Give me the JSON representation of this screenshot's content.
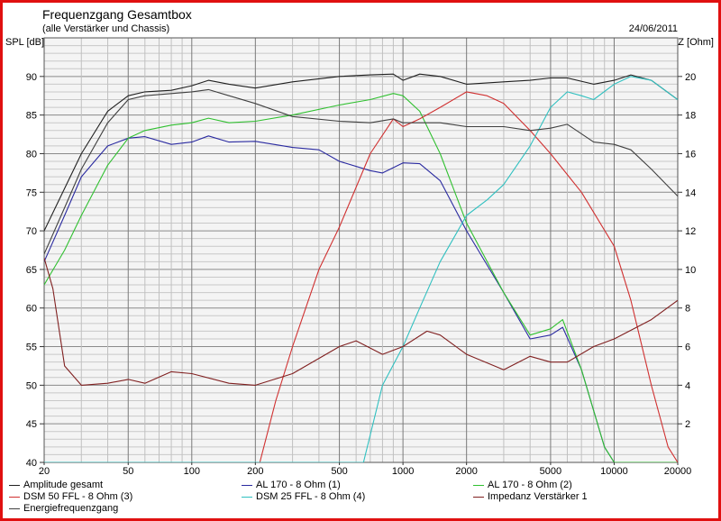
{
  "chart_data": {
    "type": "line",
    "title": "Frequenzgang Gesamtbox",
    "subtitle": "(alle Verstärker und Chassis)",
    "date": "24/06/2011",
    "xlabel": "",
    "ylabel": "SPL [dB]",
    "y2label": "Z [Ohm]",
    "xscale": "log",
    "xlim": [
      20,
      20000
    ],
    "ylim": [
      40,
      95
    ],
    "y2lim": [
      0,
      22
    ],
    "grid": true,
    "legend_position": "bottom",
    "x_ticks": [
      "20",
      "50",
      "100",
      "200",
      "500",
      "1000",
      "2000",
      "5000",
      "10000",
      "20000"
    ],
    "x_tick_values": [
      20,
      50,
      100,
      200,
      500,
      1000,
      2000,
      5000,
      10000,
      20000
    ],
    "y_ticks": [
      "40",
      "45",
      "50",
      "55",
      "60",
      "65",
      "70",
      "75",
      "80",
      "85",
      "90"
    ],
    "y_tick_values": [
      40,
      45,
      50,
      55,
      60,
      65,
      70,
      75,
      80,
      85,
      90
    ],
    "y2_ticks": [
      "2",
      "4",
      "6",
      "8",
      "10",
      "12",
      "14",
      "16",
      "18",
      "20"
    ],
    "y2_tick_values": [
      2,
      4,
      6,
      8,
      10,
      12,
      14,
      16,
      18,
      20
    ],
    "series": [
      {
        "name": "Amplitude gesamt",
        "color": "#202020",
        "axis": "left",
        "x": [
          20,
          25,
          30,
          40,
          50,
          60,
          80,
          100,
          120,
          150,
          200,
          300,
          500,
          700,
          900,
          1000,
          1200,
          1500,
          2000,
          3000,
          4000,
          5000,
          6000,
          8000,
          10000,
          12000,
          15000,
          20000
        ],
        "y": [
          70,
          75.5,
          80,
          85.5,
          87.5,
          88,
          88.2,
          88.8,
          89.5,
          89,
          88.5,
          89.3,
          90,
          90.2,
          90.3,
          89.5,
          90.3,
          90,
          89,
          89.3,
          89.5,
          89.8,
          89.8,
          89,
          89.5,
          90.2,
          89.5,
          87
        ]
      },
      {
        "name": "AL 170 - 8 Ohm (1)",
        "color": "#2a2aa0",
        "axis": "left",
        "x": [
          20,
          25,
          30,
          40,
          50,
          60,
          80,
          100,
          120,
          150,
          200,
          300,
          400,
          500,
          700,
          800,
          1000,
          1200,
          1500,
          2000,
          3000,
          4000,
          5000,
          5700,
          7000,
          9000,
          10000,
          20000
        ],
        "y": [
          66,
          72,
          77,
          81,
          82,
          82.2,
          81.2,
          81.5,
          82.3,
          81.5,
          81.6,
          80.8,
          80.5,
          79,
          77.8,
          77.5,
          78.8,
          78.7,
          76.5,
          70,
          62,
          56,
          56.5,
          57.5,
          52,
          42,
          40,
          40
        ]
      },
      {
        "name": "AL 170 - 8 Ohm (2)",
        "color": "#30c030",
        "axis": "left",
        "x": [
          20,
          25,
          30,
          40,
          50,
          60,
          80,
          100,
          120,
          150,
          200,
          300,
          500,
          700,
          900,
          1000,
          1200,
          1500,
          2000,
          3000,
          4000,
          5000,
          5700,
          7000,
          9000,
          10000,
          20000
        ],
        "y": [
          63,
          67.5,
          72,
          78.5,
          82,
          83,
          83.7,
          84,
          84.6,
          84,
          84.2,
          85,
          86.3,
          87,
          87.8,
          87.5,
          85.5,
          80,
          71,
          62,
          56.5,
          57.3,
          58.5,
          52,
          42,
          40,
          40
        ]
      },
      {
        "name": "DSM 50 FFL - 8 Ohm (3)",
        "color": "#d03030",
        "axis": "left",
        "x": [
          20,
          210,
          250,
          300,
          400,
          500,
          700,
          900,
          1000,
          1200,
          1500,
          2000,
          2500,
          3000,
          4000,
          5000,
          7000,
          10000,
          12000,
          15000,
          18000,
          20000
        ],
        "y": [
          40,
          40,
          48,
          55,
          65,
          70.5,
          80,
          84.5,
          83.5,
          84.5,
          86,
          88,
          87.5,
          86.5,
          83,
          80,
          75,
          68,
          61,
          50,
          42,
          40
        ]
      },
      {
        "name": "DSM 25 FFL - 8 Ohm (4)",
        "color": "#30c0c0",
        "axis": "left",
        "x": [
          20,
          650,
          800,
          1000,
          1200,
          1500,
          2000,
          2500,
          3000,
          4000,
          5000,
          6000,
          7000,
          8000,
          10000,
          12000,
          15000,
          20000
        ],
        "y": [
          40,
          40,
          50,
          55,
          60,
          66,
          72,
          74,
          76,
          81,
          86,
          88,
          87.5,
          87,
          89,
          90,
          89.5,
          87
        ]
      },
      {
        "name": "Impedanz Verstärker 1",
        "color": "#802020",
        "axis": "right",
        "x": [
          20,
          22,
          25,
          30,
          40,
          50,
          60,
          80,
          100,
          150,
          200,
          300,
          500,
          600,
          800,
          1000,
          1300,
          1500,
          2000,
          3000,
          4000,
          5000,
          6000,
          8000,
          10000,
          15000,
          20000
        ],
        "y": [
          10.6,
          9,
          5,
          4,
          4.1,
          4.3,
          4.1,
          4.7,
          4.6,
          4.1,
          4,
          4.6,
          6,
          6.3,
          5.6,
          6,
          6.8,
          6.6,
          5.6,
          4.8,
          5.5,
          5.2,
          5.2,
          6,
          6.4,
          7.4,
          8.4
        ]
      },
      {
        "name": "Energiefrequenzgang",
        "color": "#404040",
        "axis": "left",
        "x": [
          20,
          25,
          30,
          40,
          50,
          60,
          100,
          120,
          150,
          200,
          300,
          500,
          700,
          900,
          1000,
          1500,
          2000,
          3000,
          4000,
          5000,
          6000,
          8000,
          10000,
          12000,
          15000,
          20000
        ],
        "y": [
          67,
          73,
          78,
          84,
          87,
          87.5,
          88,
          88.3,
          87.5,
          86.5,
          84.8,
          84.2,
          84,
          84.5,
          84,
          84,
          83.5,
          83.5,
          83,
          83.3,
          83.8,
          81.5,
          81.2,
          80.5,
          78,
          74.5
        ]
      }
    ]
  }
}
